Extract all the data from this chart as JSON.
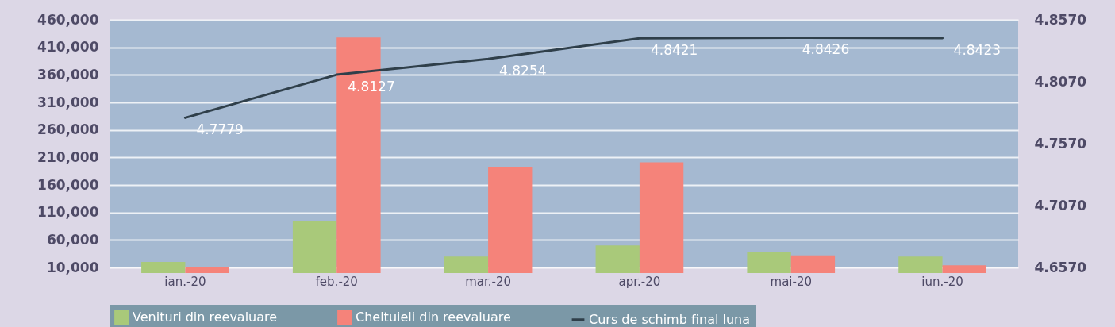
{
  "chart_data": {
    "type": "bar",
    "categories": [
      "ian.-20",
      "feb.-20",
      "mar.-20",
      "apr.-20",
      "mai-20",
      "iun.-20"
    ],
    "series": [
      {
        "name": "Venituri din reevaluare",
        "color": "#a9c97a",
        "values": [
          20000,
          94000,
          30000,
          50000,
          38000,
          30000
        ]
      },
      {
        "name": "Cheltuieli din reevaluare",
        "color": "#f5837a",
        "values": [
          11000,
          428000,
          192000,
          201000,
          32000,
          14000
        ]
      },
      {
        "name": "Curs de schimb final luna",
        "type": "line",
        "axis": "y2",
        "color": "#2f3f4a",
        "values": [
          4.7779,
          4.8127,
          4.8254,
          4.8421,
          4.8426,
          4.8423
        ],
        "value_labels": [
          "4.7779",
          "4.8127",
          "4.8254",
          "4.8421",
          "4.8426",
          "4.8423"
        ]
      }
    ],
    "ylim": [
      10000,
      460000
    ],
    "yticks": [
      {
        "value": 10000,
        "label": "10,000"
      },
      {
        "value": 60000,
        "label": "60,000"
      },
      {
        "value": 110000,
        "label": "110,000"
      },
      {
        "value": 160000,
        "label": "160,000"
      },
      {
        "value": 210000,
        "label": "210,000"
      },
      {
        "value": 260000,
        "label": "260,000"
      },
      {
        "value": 310000,
        "label": "310,000"
      },
      {
        "value": 360000,
        "label": "360,000"
      },
      {
        "value": 410000,
        "label": "410,000"
      },
      {
        "value": 460000,
        "label": "460,000"
      }
    ],
    "y2lim": [
      4.657,
      4.857
    ],
    "y2ticks": [
      {
        "value": 4.657,
        "label": "4.6570"
      },
      {
        "value": 4.707,
        "label": "4.7070"
      },
      {
        "value": 4.757,
        "label": "4.7570"
      },
      {
        "value": 4.807,
        "label": "4.8070"
      },
      {
        "value": 4.857,
        "label": "4.8570"
      }
    ],
    "grid": "y",
    "legend": "bottom"
  }
}
